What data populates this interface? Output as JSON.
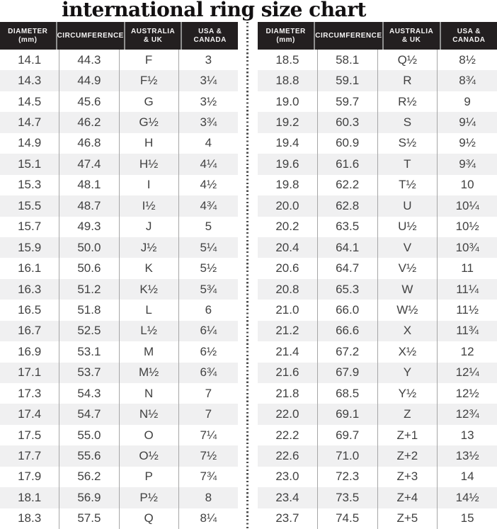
{
  "title": "international ring size chart",
  "header": {
    "col1_line1": "DIAMETER",
    "col1_line2": "(mm)",
    "col2": "CIRCUMFERENCE",
    "col3_line1": "AUSTRALIA",
    "col3_line2": "& UK",
    "col4_line1": "USA &",
    "col4_line2": "CANADA"
  },
  "colors": {
    "header_bg": "#231f20",
    "header_text": "#f5f4f4",
    "alt_row_bg": "#f0f0f1",
    "body_text": "#414141",
    "column_separator": "#a6a6a6",
    "header_separator": "#8f8f8f",
    "divider_dots": "#4d4d4d",
    "title_color": "#121011"
  },
  "chart_data": {
    "type": "table",
    "title": "international ring size chart",
    "columns": [
      "DIAMETER (mm)",
      "CIRCUMFERENCE",
      "AUSTRALIA & UK",
      "USA & CANADA"
    ],
    "tables": {
      "left": {
        "rows": [
          [
            "14.1",
            "44.3",
            "F",
            "3"
          ],
          [
            "14.3",
            "44.9",
            "F½",
            "3¼"
          ],
          [
            "14.5",
            "45.6",
            "G",
            "3½"
          ],
          [
            "14.7",
            "46.2",
            "G½",
            "3¾"
          ],
          [
            "14.9",
            "46.8",
            "H",
            "4"
          ],
          [
            "15.1",
            "47.4",
            "H½",
            "4¼"
          ],
          [
            "15.3",
            "48.1",
            "I",
            "4½"
          ],
          [
            "15.5",
            "48.7",
            "I½",
            "4¾"
          ],
          [
            "15.7",
            "49.3",
            "J",
            "5"
          ],
          [
            "15.9",
            "50.0",
            "J½",
            "5¼"
          ],
          [
            "16.1",
            "50.6",
            "K",
            "5½"
          ],
          [
            "16.3",
            "51.2",
            "K½",
            "5¾"
          ],
          [
            "16.5",
            "51.8",
            "L",
            "6"
          ],
          [
            "16.7",
            "52.5",
            "L½",
            "6¼"
          ],
          [
            "16.9",
            "53.1",
            "M",
            "6½"
          ],
          [
            "17.1",
            "53.7",
            "M½",
            "6¾"
          ],
          [
            "17.3",
            "54.3",
            "N",
            "7"
          ],
          [
            "17.4",
            "54.7",
            "N½",
            "7"
          ],
          [
            "17.5",
            "55.0",
            "O",
            "7¼"
          ],
          [
            "17.7",
            "55.6",
            "O½",
            "7½"
          ],
          [
            "17.9",
            "56.2",
            "P",
            "7¾"
          ],
          [
            "18.1",
            "56.9",
            "P½",
            "8"
          ],
          [
            "18.3",
            "57.5",
            "Q",
            "8¼"
          ]
        ]
      },
      "right": {
        "rows": [
          [
            "18.5",
            "58.1",
            "Q½",
            "8½"
          ],
          [
            "18.8",
            "59.1",
            "R",
            "8¾"
          ],
          [
            "19.0",
            "59.7",
            "R½",
            "9"
          ],
          [
            "19.2",
            "60.3",
            "S",
            "9¼"
          ],
          [
            "19.4",
            "60.9",
            "S½",
            "9½"
          ],
          [
            "19.6",
            "61.6",
            "T",
            "9¾"
          ],
          [
            "19.8",
            "62.2",
            "T½",
            "10"
          ],
          [
            "20.0",
            "62.8",
            "U",
            "10¼"
          ],
          [
            "20.2",
            "63.5",
            "U½",
            "10½"
          ],
          [
            "20.4",
            "64.1",
            "V",
            "10¾"
          ],
          [
            "20.6",
            "64.7",
            "V½",
            "11"
          ],
          [
            "20.8",
            "65.3",
            "W",
            "11¼"
          ],
          [
            "21.0",
            "66.0",
            "W½",
            "11½"
          ],
          [
            "21.2",
            "66.6",
            "X",
            "11¾"
          ],
          [
            "21.4",
            "67.2",
            "X½",
            "12"
          ],
          [
            "21.6",
            "67.9",
            "Y",
            "12¼"
          ],
          [
            "21.8",
            "68.5",
            "Y½",
            "12½"
          ],
          [
            "22.0",
            "69.1",
            "Z",
            "12¾"
          ],
          [
            "22.2",
            "69.7",
            "Z+1",
            "13"
          ],
          [
            "22.6",
            "71.0",
            "Z+2",
            "13½"
          ],
          [
            "23.0",
            "72.3",
            "Z+3",
            "14"
          ],
          [
            "23.4",
            "73.5",
            "Z+4",
            "14½"
          ],
          [
            "23.7",
            "74.5",
            "Z+5",
            "15"
          ]
        ]
      }
    }
  }
}
